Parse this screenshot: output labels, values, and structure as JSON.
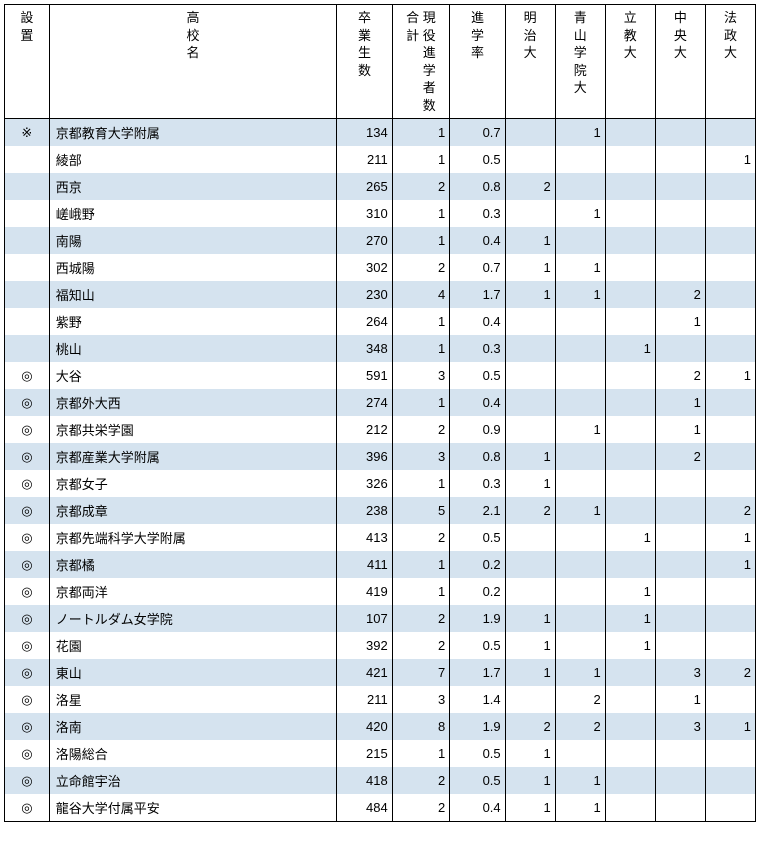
{
  "headers": {
    "mark": "設\n置",
    "school": "高\n校\n名",
    "grad": "卒\n業\n生\n数",
    "gen": "合 現\n計 役\n　 進\n　 学\n　 者\n　 数",
    "rate": "進\n学\n率",
    "meiji": "明\n治\n大",
    "aoyama": "青\n山\n学\n院\n大",
    "rikkyo": "立\n教\n大",
    "chuo": "中\n央\n大",
    "hosei": "法\n政\n大"
  },
  "rows": [
    {
      "mark": "※",
      "school": "京都教育大学附属",
      "grad": 134,
      "gen": 1,
      "rate": "0.7",
      "meiji": "",
      "aoyama": "1",
      "rikkyo": "",
      "chuo": "",
      "hosei": ""
    },
    {
      "mark": "",
      "school": "綾部",
      "grad": 211,
      "gen": 1,
      "rate": "0.5",
      "meiji": "",
      "aoyama": "",
      "rikkyo": "",
      "chuo": "",
      "hosei": "1"
    },
    {
      "mark": "",
      "school": "西京",
      "grad": 265,
      "gen": 2,
      "rate": "0.8",
      "meiji": "2",
      "aoyama": "",
      "rikkyo": "",
      "chuo": "",
      "hosei": ""
    },
    {
      "mark": "",
      "school": "嵯峨野",
      "grad": 310,
      "gen": 1,
      "rate": "0.3",
      "meiji": "",
      "aoyama": "1",
      "rikkyo": "",
      "chuo": "",
      "hosei": ""
    },
    {
      "mark": "",
      "school": "南陽",
      "grad": 270,
      "gen": 1,
      "rate": "0.4",
      "meiji": "1",
      "aoyama": "",
      "rikkyo": "",
      "chuo": "",
      "hosei": ""
    },
    {
      "mark": "",
      "school": "西城陽",
      "grad": 302,
      "gen": 2,
      "rate": "0.7",
      "meiji": "1",
      "aoyama": "1",
      "rikkyo": "",
      "chuo": "",
      "hosei": ""
    },
    {
      "mark": "",
      "school": "福知山",
      "grad": 230,
      "gen": 4,
      "rate": "1.7",
      "meiji": "1",
      "aoyama": "1",
      "rikkyo": "",
      "chuo": "2",
      "hosei": ""
    },
    {
      "mark": "",
      "school": "紫野",
      "grad": 264,
      "gen": 1,
      "rate": "0.4",
      "meiji": "",
      "aoyama": "",
      "rikkyo": "",
      "chuo": "1",
      "hosei": ""
    },
    {
      "mark": "",
      "school": "桃山",
      "grad": 348,
      "gen": 1,
      "rate": "0.3",
      "meiji": "",
      "aoyama": "",
      "rikkyo": "1",
      "chuo": "",
      "hosei": ""
    },
    {
      "mark": "◎",
      "school": "大谷",
      "grad": 591,
      "gen": 3,
      "rate": "0.5",
      "meiji": "",
      "aoyama": "",
      "rikkyo": "",
      "chuo": "2",
      "hosei": "1"
    },
    {
      "mark": "◎",
      "school": "京都外大西",
      "grad": 274,
      "gen": 1,
      "rate": "0.4",
      "meiji": "",
      "aoyama": "",
      "rikkyo": "",
      "chuo": "1",
      "hosei": ""
    },
    {
      "mark": "◎",
      "school": "京都共栄学園",
      "grad": 212,
      "gen": 2,
      "rate": "0.9",
      "meiji": "",
      "aoyama": "1",
      "rikkyo": "",
      "chuo": "1",
      "hosei": ""
    },
    {
      "mark": "◎",
      "school": "京都産業大学附属",
      "grad": 396,
      "gen": 3,
      "rate": "0.8",
      "meiji": "1",
      "aoyama": "",
      "rikkyo": "",
      "chuo": "2",
      "hosei": ""
    },
    {
      "mark": "◎",
      "school": "京都女子",
      "grad": 326,
      "gen": 1,
      "rate": "0.3",
      "meiji": "1",
      "aoyama": "",
      "rikkyo": "",
      "chuo": "",
      "hosei": ""
    },
    {
      "mark": "◎",
      "school": "京都成章",
      "grad": 238,
      "gen": 5,
      "rate": "2.1",
      "meiji": "2",
      "aoyama": "1",
      "rikkyo": "",
      "chuo": "",
      "hosei": "2"
    },
    {
      "mark": "◎",
      "school": "京都先端科学大学附属",
      "grad": 413,
      "gen": 2,
      "rate": "0.5",
      "meiji": "",
      "aoyama": "",
      "rikkyo": "1",
      "chuo": "",
      "hosei": "1"
    },
    {
      "mark": "◎",
      "school": "京都橘",
      "grad": 411,
      "gen": 1,
      "rate": "0.2",
      "meiji": "",
      "aoyama": "",
      "rikkyo": "",
      "chuo": "",
      "hosei": "1"
    },
    {
      "mark": "◎",
      "school": "京都両洋",
      "grad": 419,
      "gen": 1,
      "rate": "0.2",
      "meiji": "",
      "aoyama": "",
      "rikkyo": "1",
      "chuo": "",
      "hosei": ""
    },
    {
      "mark": "◎",
      "school": "ノートルダム女学院",
      "grad": 107,
      "gen": 2,
      "rate": "1.9",
      "meiji": "1",
      "aoyama": "",
      "rikkyo": "1",
      "chuo": "",
      "hosei": ""
    },
    {
      "mark": "◎",
      "school": "花園",
      "grad": 392,
      "gen": 2,
      "rate": "0.5",
      "meiji": "1",
      "aoyama": "",
      "rikkyo": "1",
      "chuo": "",
      "hosei": ""
    },
    {
      "mark": "◎",
      "school": "東山",
      "grad": 421,
      "gen": 7,
      "rate": "1.7",
      "meiji": "1",
      "aoyama": "1",
      "rikkyo": "",
      "chuo": "3",
      "hosei": "2"
    },
    {
      "mark": "◎",
      "school": "洛星",
      "grad": 211,
      "gen": 3,
      "rate": "1.4",
      "meiji": "",
      "aoyama": "2",
      "rikkyo": "",
      "chuo": "1",
      "hosei": ""
    },
    {
      "mark": "◎",
      "school": "洛南",
      "grad": 420,
      "gen": 8,
      "rate": "1.9",
      "meiji": "2",
      "aoyama": "2",
      "rikkyo": "",
      "chuo": "3",
      "hosei": "1"
    },
    {
      "mark": "◎",
      "school": "洛陽総合",
      "grad": 215,
      "gen": 1,
      "rate": "0.5",
      "meiji": "1",
      "aoyama": "",
      "rikkyo": "",
      "chuo": "",
      "hosei": ""
    },
    {
      "mark": "◎",
      "school": "立命館宇治",
      "grad": 418,
      "gen": 2,
      "rate": "0.5",
      "meiji": "1",
      "aoyama": "1",
      "rikkyo": "",
      "chuo": "",
      "hosei": ""
    },
    {
      "mark": "◎",
      "school": "龍谷大学付属平安",
      "grad": 484,
      "gen": 2,
      "rate": "0.4",
      "meiji": "1",
      "aoyama": "1",
      "rikkyo": "",
      "chuo": "",
      "hosei": ""
    }
  ]
}
